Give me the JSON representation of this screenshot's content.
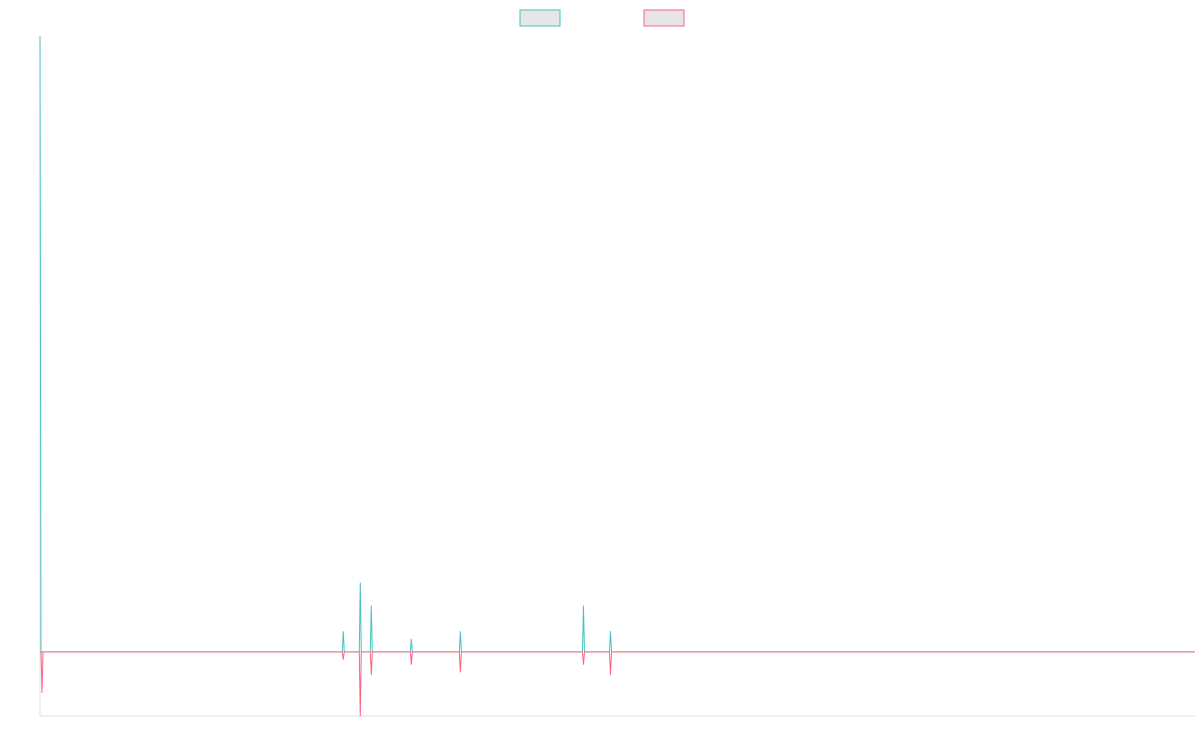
{
  "chart_data": {
    "type": "line",
    "title": "",
    "xlabel": "",
    "ylabel": "",
    "grid": false,
    "legend": {
      "position": "top-center",
      "show_labels": false
    },
    "ylim": [
      -2.5,
      24
    ],
    "x": [
      1,
      2,
      3,
      4,
      5,
      6,
      7,
      8,
      9,
      10,
      11,
      12,
      13,
      14,
      15,
      16,
      17,
      18,
      19,
      20,
      21,
      22,
      23,
      24,
      25,
      26,
      27,
      28,
      29,
      30,
      31,
      32,
      33,
      34,
      35,
      36,
      37,
      38,
      39,
      40,
      41,
      42,
      43,
      44,
      45,
      46,
      47,
      48,
      49,
      50,
      51,
      52,
      53,
      54,
      55,
      56,
      57,
      58,
      59,
      60,
      61,
      62,
      63,
      64,
      65,
      66,
      67,
      68,
      69,
      70,
      71,
      72,
      73,
      74,
      75,
      76,
      77,
      78,
      79,
      80,
      81,
      82,
      83,
      84,
      85,
      86,
      87,
      88,
      89,
      90,
      91,
      92,
      93,
      94,
      95,
      96,
      97,
      98,
      99,
      100,
      101,
      102,
      103,
      104,
      105,
      106,
      107,
      108,
      109,
      110,
      111,
      112,
      113,
      114,
      115,
      116,
      117,
      118,
      119,
      120,
      121,
      122,
      123,
      124,
      125,
      126,
      127,
      128,
      129,
      130,
      131,
      132,
      133,
      134,
      135,
      136,
      137,
      138,
      139,
      140,
      141,
      142,
      143,
      144,
      145,
      146,
      147,
      148,
      149,
      150,
      151,
      152,
      153,
      154,
      155,
      156,
      157,
      158,
      159,
      160,
      161,
      162,
      163,
      164,
      165,
      166,
      167,
      168,
      169,
      170,
      171,
      172,
      173,
      174,
      175,
      176,
      177,
      178,
      179,
      180,
      181,
      182,
      183,
      184,
      185,
      186,
      187,
      188,
      189,
      190,
      191,
      192,
      193,
      194,
      195,
      196,
      197,
      198,
      199,
      200,
      201,
      202,
      203,
      204,
      205,
      206,
      207,
      208,
      209,
      210,
      211,
      212,
      213,
      214,
      215,
      216,
      217,
      218,
      219,
      220,
      221,
      222,
      223,
      224,
      225,
      226,
      227,
      228,
      229,
      230,
      231,
      232,
      233,
      234,
      235,
      236,
      237,
      238,
      239,
      240,
      241,
      242,
      243,
      244,
      245,
      246,
      247,
      248,
      249,
      250,
      251,
      252,
      253,
      254,
      255,
      256,
      257,
      258,
      259,
      260,
      261,
      262,
      263,
      264,
      265,
      266,
      267,
      268,
      269,
      270,
      271,
      272,
      273,
      274,
      275,
      276,
      277,
      278,
      279,
      280,
      281,
      282,
      283,
      284,
      285,
      286,
      287,
      288,
      289,
      290,
      291,
      292,
      293,
      294,
      295,
      296,
      297,
      298,
      299,
      300,
      301,
      302,
      303,
      304,
      305,
      306,
      307,
      308,
      309,
      310,
      311,
      312,
      313,
      314,
      315,
      316,
      317,
      318,
      319,
      320,
      321,
      322,
      323,
      324,
      325,
      326,
      327,
      328,
      329,
      330,
      331,
      332,
      333,
      334,
      335,
      336,
      337,
      338,
      339,
      340,
      341,
      342,
      343,
      344,
      345,
      346,
      347,
      348,
      349,
      350,
      351,
      352,
      353,
      354,
      355,
      356,
      357,
      358,
      359,
      360,
      361,
      362,
      363,
      364,
      365,
      366,
      367,
      368,
      369,
      370,
      371,
      372,
      373,
      374,
      375,
      376,
      377,
      378,
      379,
      380,
      381,
      382,
      383,
      384,
      385,
      386,
      387,
      388,
      389,
      390,
      391,
      392,
      393,
      394,
      395,
      396,
      397,
      398,
      399,
      400,
      401,
      402,
      403,
      404,
      405,
      406,
      407,
      408,
      409,
      410,
      411,
      412,
      413,
      414,
      415,
      416,
      417,
      418,
      419,
      420,
      421,
      422,
      423,
      424,
      425,
      426,
      427,
      428,
      429,
      430,
      431,
      432,
      433,
      434,
      435,
      436,
      437,
      438,
      439,
      440,
      441,
      442,
      443,
      444,
      445,
      446,
      447,
      448,
      449,
      450,
      451,
      452,
      453,
      454,
      455,
      456,
      457,
      458,
      459,
      460,
      461,
      462,
      463,
      464,
      465,
      466,
      467,
      468,
      469,
      470,
      471,
      472,
      473,
      474,
      475,
      476,
      477,
      478,
      479,
      480,
      481,
      482,
      483,
      484,
      485,
      486,
      487,
      488,
      489,
      490,
      491,
      492,
      493,
      494,
      495,
      496,
      497,
      498,
      499,
      500,
      501,
      502,
      503,
      504,
      505,
      506,
      507,
      508,
      509,
      510,
      511,
      512,
      513,
      514,
      515,
      516,
      517,
      518,
      519,
      520,
      521,
      522,
      523,
      524,
      525,
      526,
      527,
      528,
      529,
      530,
      531,
      532,
      533,
      534,
      535,
      536,
      537,
      538,
      539,
      540,
      541,
      542,
      543,
      544,
      545,
      546,
      547,
      548,
      549,
      550,
      551,
      552,
      553,
      554,
      555,
      556,
      557,
      558,
      559,
      560,
      561,
      562,
      563,
      564,
      565,
      566,
      567,
      568,
      569,
      570,
      571,
      572,
      573,
      574,
      575,
      576,
      577,
      578,
      579,
      580,
      581,
      582,
      583,
      584,
      585,
      586,
      587,
      588,
      589,
      590,
      591,
      592,
      593,
      594,
      595,
      596,
      597,
      598,
      599,
      600,
      601,
      602,
      603,
      604,
      605,
      606,
      607,
      608,
      609,
      610,
      611,
      612,
      613,
      614,
      615,
      616,
      617,
      618,
      619,
      620,
      621,
      622,
      623,
      624,
      625,
      626,
      627,
      628,
      629,
      630,
      631,
      632,
      633,
      634,
      635,
      636,
      637,
      638,
      639,
      640,
      641,
      642,
      643,
      644,
      645,
      646,
      647,
      648,
      649,
      650,
      651,
      652,
      653,
      654,
      655,
      656,
      657,
      658,
      659,
      660,
      661,
      662,
      663,
      664,
      665,
      666,
      667,
      668,
      669,
      670,
      671,
      672,
      673,
      674,
      675,
      676,
      677,
      678,
      679,
      680,
      681,
      682,
      683,
      684,
      685,
      686,
      687,
      688,
      689,
      690,
      691,
      692,
      693,
      694,
      695,
      696,
      697,
      698,
      699,
      700,
      701,
      702,
      703,
      704,
      705,
      706,
      707,
      708,
      709,
      710,
      711,
      712,
      713,
      714,
      715,
      716,
      717,
      718,
      719,
      720,
      721,
      722,
      723,
      724,
      725,
      726,
      727,
      728,
      729,
      730,
      731,
      732,
      733,
      734,
      735,
      736,
      737,
      738,
      739,
      740,
      741,
      742,
      743,
      744,
      745,
      746,
      747,
      748,
      749,
      750,
      751,
      752,
      753,
      754,
      755,
      756,
      757,
      758,
      759,
      760,
      761,
      762,
      763,
      764,
      765,
      766,
      767,
      768,
      769,
      770,
      771,
      772,
      773,
      774,
      775,
      776,
      777,
      778,
      779,
      780,
      781,
      782,
      783,
      784,
      785,
      786,
      787,
      788,
      789,
      790,
      791,
      792,
      793,
      794,
      795,
      796,
      797,
      798,
      799,
      800,
      801,
      802,
      803,
      804,
      805,
      806,
      807,
      808,
      809,
      810,
      811,
      812,
      813,
      814,
      815,
      816,
      817,
      818,
      819,
      820,
      821,
      822,
      823,
      824,
      825,
      826,
      827,
      828,
      829,
      830,
      831,
      832,
      833,
      834,
      835,
      836,
      837,
      838,
      839,
      840,
      841,
      842,
      843,
      844,
      845,
      846,
      847,
      848,
      849,
      850,
      851,
      852,
      853,
      854,
      855,
      856,
      857,
      858,
      859,
      860,
      861,
      862,
      863,
      864,
      865,
      866,
      867,
      868,
      869,
      870,
      871,
      872,
      873,
      874,
      875,
      876,
      877,
      878,
      879,
      880,
      881,
      882,
      883,
      884,
      885,
      886,
      887,
      888,
      889,
      890,
      891,
      892,
      893,
      894,
      895,
      896,
      897,
      898,
      899,
      900,
      901,
      902,
      903,
      904,
      905,
      906,
      907,
      908,
      909,
      910,
      911,
      912,
      913,
      914,
      915,
      916,
      917,
      918,
      919,
      920,
      921,
      922,
      923,
      924,
      925,
      926,
      927,
      928,
      929,
      930,
      931,
      932,
      933,
      934,
      935,
      936,
      937,
      938,
      939,
      940,
      941,
      942,
      943,
      944,
      945,
      946,
      947,
      948,
      949,
      950,
      951,
      952,
      953,
      954,
      955,
      956,
      957,
      958,
      959,
      960,
      961,
      962,
      963,
      964,
      965,
      966,
      967,
      968,
      969,
      970,
      971,
      972,
      973,
      974,
      975,
      976,
      977,
      978,
      979,
      980,
      981,
      982,
      983,
      984,
      985,
      986,
      987,
      988,
      989,
      990,
      991,
      992,
      993,
      994,
      995,
      996,
      997,
      998,
      999,
      1000,
      1001,
      1002,
      1003,
      1004,
      1005,
      1006,
      1007,
      1008,
      1009,
      1010,
      1011,
      1012,
      1013,
      1014,
      1015,
      1016,
      1017,
      1018,
      1019,
      1020,
      1021,
      1022,
      1023,
      1024,
      1025,
      1026,
      1027,
      1028,
      1029,
      1030,
      1031,
      1032,
      1033,
      1034,
      1035,
      1036,
      1037,
      1038,
      1039,
      1040,
      1041,
      1042,
      1043,
      1044,
      1045,
      1046,
      1047,
      1048,
      1049,
      1050,
      1051,
      1052,
      1053,
      1054,
      1055,
      1056,
      1057,
      1058,
      1059,
      1060,
      1061,
      1062,
      1063,
      1064,
      1065,
      1066,
      1067,
      1068,
      1069,
      1070,
      1071,
      1072,
      1073,
      1074,
      1075,
      1076,
      1077,
      1078,
      1079,
      1080,
      1081,
      1082,
      1083,
      1084,
      1085,
      1086,
      1087,
      1088,
      1089,
      1090,
      1091,
      1092,
      1093,
      1094,
      1095,
      1096,
      1097,
      1098,
      1099,
      1100,
      1101,
      1102,
      1103,
      1104,
      1105,
      1106,
      1107,
      1108,
      1109,
      1110,
      1111,
      1112,
      1113,
      1114,
      1115,
      1116,
      1117,
      1118,
      1119,
      1120,
      1121,
      1122,
      1123,
      1124,
      1125,
      1126,
      1127,
      1128,
      1129,
      1130,
      1131,
      1132,
      1133,
      1134,
      1135,
      1136,
      1137,
      1138,
      1139,
      1140,
      1141,
      1142,
      1143,
      1144,
      1145,
      1146,
      1147,
      1148,
      1149,
      1150,
      1151,
      1152,
      1153,
      1154,
      1155
    ],
    "series": [
      {
        "color": "#4bc0c0",
        "spikes": [
          [
            1,
            24
          ],
          [
            304,
            0.8
          ],
          [
            321,
            2.7
          ],
          [
            332,
            1.8
          ],
          [
            372,
            0.5
          ],
          [
            421,
            0.8
          ],
          [
            544,
            1.8
          ],
          [
            571,
            0.8
          ]
        ]
      },
      {
        "color": "#ff6384",
        "spikes": [
          [
            1,
            0
          ],
          [
            3,
            -1.6
          ],
          [
            304,
            -0.3
          ],
          [
            321,
            -2.5
          ],
          [
            332,
            -0.9
          ],
          [
            372,
            -0.5
          ],
          [
            421,
            -0.8
          ],
          [
            544,
            -0.5
          ],
          [
            571,
            -0.9
          ]
        ]
      }
    ]
  }
}
